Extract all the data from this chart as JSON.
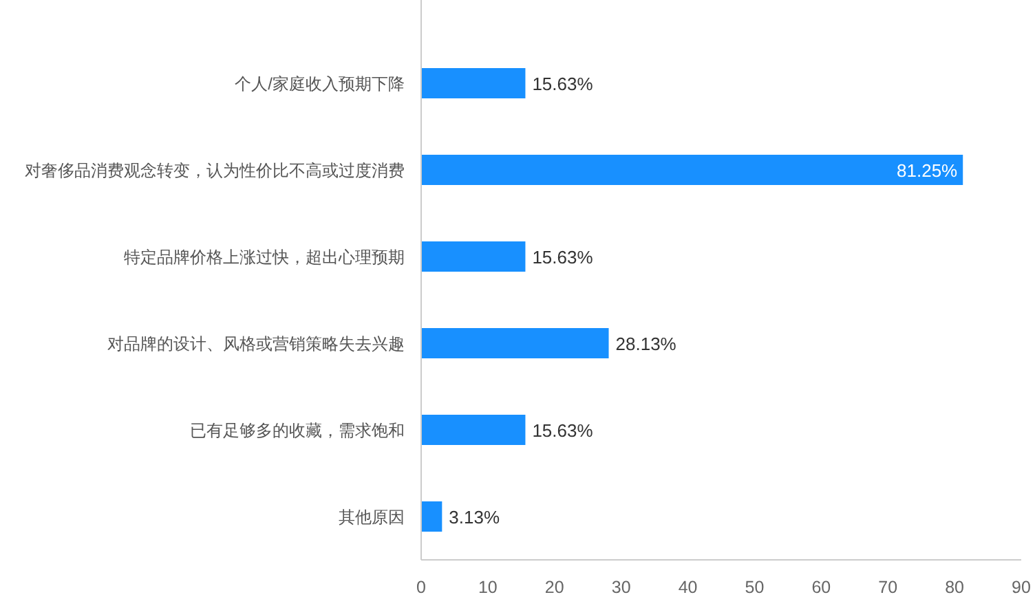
{
  "chart_data": {
    "type": "bar",
    "orientation": "horizontal",
    "categories": [
      "个人/家庭收入预期下降",
      "对奢侈品消费观念转变，认为性价比不高或过度消费",
      "特定品牌价格上涨过快，超出心理预期",
      "对品牌的设计、风格或营销策略失去兴趣",
      "已有足够多的收藏，需求饱和",
      "其他原因"
    ],
    "values": [
      15.63,
      81.25,
      15.63,
      28.13,
      15.63,
      3.13
    ],
    "value_labels": [
      "15.63%",
      "81.25%",
      "15.63%",
      "28.13%",
      "15.63%",
      "3.13%"
    ],
    "color": "#1890ff",
    "xlim": [
      0,
      90
    ],
    "xticks": [
      0,
      10,
      20,
      30,
      40,
      50,
      60,
      70,
      80,
      90
    ]
  }
}
